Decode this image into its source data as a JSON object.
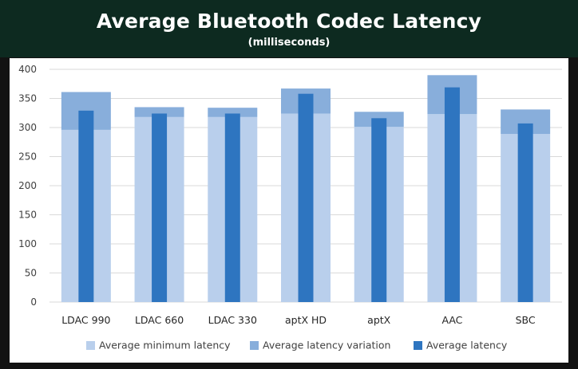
{
  "header": {
    "title": "Average Bluetooth Codec Latency",
    "subtitle": "(milliseconds)"
  },
  "colors": {
    "header_bg": "#0d2a20",
    "min_latency": "#b9cfec",
    "variation": "#88aedb",
    "avg_latency": "#2e75c0",
    "grid": "#d9d9d9"
  },
  "chart_data": {
    "type": "bar",
    "title": "Average Bluetooth Codec Latency",
    "subtitle": "(milliseconds)",
    "xlabel": "",
    "ylabel": "",
    "ylim": [
      0,
      400
    ],
    "yticks": [
      0,
      50,
      100,
      150,
      200,
      250,
      300,
      350,
      400
    ],
    "grid": true,
    "legend_position": "bottom",
    "categories": [
      "LDAC 990",
      "LDAC 660",
      "LDAC 330",
      "aptX HD",
      "aptX",
      "AAC",
      "SBC"
    ],
    "series": [
      {
        "name": "Average minimum latency",
        "values": [
          296,
          318,
          318,
          324,
          301,
          323,
          289
        ]
      },
      {
        "name": "Average latency variation",
        "values": [
          65,
          17,
          16,
          43,
          26,
          67,
          42
        ]
      },
      {
        "name": "Average latency",
        "values": [
          329,
          324,
          324,
          358,
          316,
          369,
          307
        ]
      }
    ]
  }
}
